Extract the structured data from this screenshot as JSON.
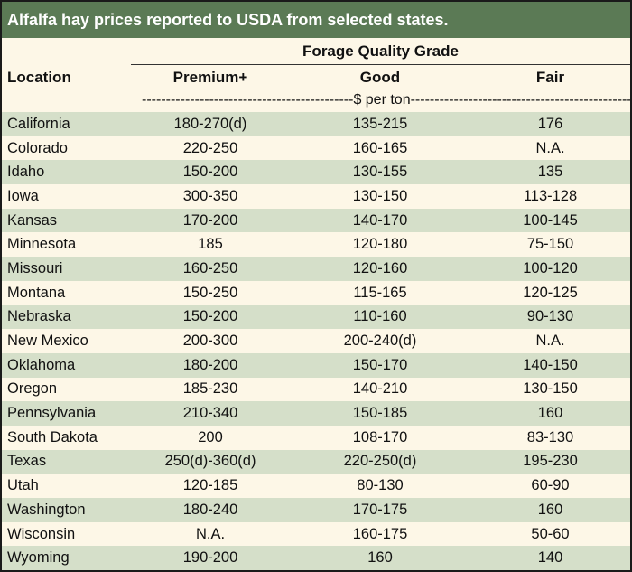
{
  "title": "Alfalfa hay prices reported to USDA from selected states.",
  "group_header": "Forage Quality Grade",
  "columns": {
    "location": "Location",
    "premium": "Premium+",
    "good": "Good",
    "fair": "Fair"
  },
  "units": "--------------------------------------------$ per ton------------------------------------------------",
  "colors": {
    "title_bg": "#5b7a55",
    "row_shade": "#d5dfc9",
    "row_plain": "#fdf7e7"
  },
  "rows": [
    {
      "location": "California",
      "premium": "180-270(d)",
      "good": "135-215",
      "fair": "176"
    },
    {
      "location": "Colorado",
      "premium": "220-250",
      "good": "160-165",
      "fair": "N.A."
    },
    {
      "location": "Idaho",
      "premium": "150-200",
      "good": "130-155",
      "fair": "135"
    },
    {
      "location": "Iowa",
      "premium": "300-350",
      "good": "130-150",
      "fair": "113-128"
    },
    {
      "location": "Kansas",
      "premium": "170-200",
      "good": "140-170",
      "fair": "100-145"
    },
    {
      "location": "Minnesota",
      "premium": "185",
      "good": "120-180",
      "fair": "75-150"
    },
    {
      "location": "Missouri",
      "premium": "160-250",
      "good": "120-160",
      "fair": "100-120"
    },
    {
      "location": "Montana",
      "premium": "150-250",
      "good": "115-165",
      "fair": "120-125"
    },
    {
      "location": "Nebraska",
      "premium": "150-200",
      "good": "110-160",
      "fair": "90-130"
    },
    {
      "location": "New Mexico",
      "premium": "200-300",
      "good": "200-240(d)",
      "fair": "N.A."
    },
    {
      "location": "Oklahoma",
      "premium": "180-200",
      "good": "150-170",
      "fair": "140-150"
    },
    {
      "location": "Oregon",
      "premium": "185-230",
      "good": "140-210",
      "fair": "130-150"
    },
    {
      "location": "Pennsylvania",
      "premium": "210-340",
      "good": "150-185",
      "fair": "160"
    },
    {
      "location": "South Dakota",
      "premium": "200",
      "good": "108-170",
      "fair": "83-130"
    },
    {
      "location": "Texas",
      "premium": "250(d)-360(d)",
      "good": "220-250(d)",
      "fair": "195-230"
    },
    {
      "location": "Utah",
      "premium": "120-185",
      "good": "80-130",
      "fair": "60-90"
    },
    {
      "location": "Washington",
      "premium": "180-240",
      "good": "170-175",
      "fair": "160"
    },
    {
      "location": "Wisconsin",
      "premium": "N.A.",
      "good": "160-175",
      "fair": "50-60"
    },
    {
      "location": "Wyoming",
      "premium": "190-200",
      "good": "160",
      "fair": "140"
    }
  ]
}
